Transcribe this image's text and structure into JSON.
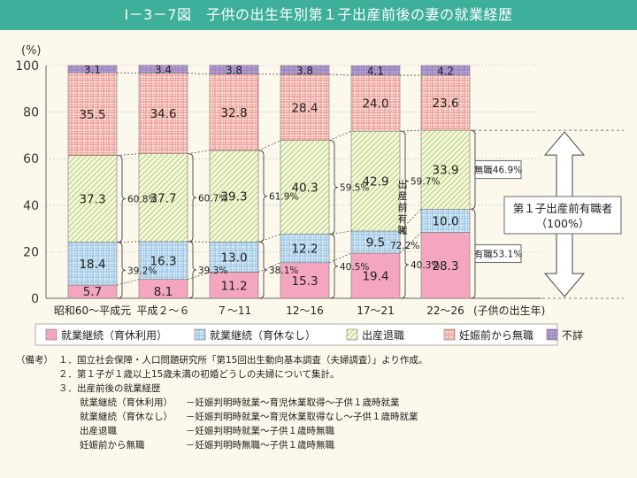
{
  "title": "I－3－7図　子供の出生年別第１子出産前後の妻の就業経歴",
  "chart_data": {
    "type": "bar",
    "stacked": true,
    "ylabel": "(%)",
    "ylim": [
      0,
      100
    ],
    "yticks": [
      0,
      20,
      40,
      60,
      80,
      100
    ],
    "categories": [
      "昭和60～平成元",
      "平成２～６",
      "７～11",
      "12～16",
      "17～21",
      "22～26"
    ],
    "xlabel": "(子供の出生年)",
    "series": [
      {
        "name": "就業継続（育休利用）",
        "color": "#f4a6be",
        "values": [
          5.7,
          8.1,
          11.2,
          15.3,
          19.4,
          28.3
        ]
      },
      {
        "name": "就業継続（育休なし）",
        "color": "#c5def0",
        "values": [
          18.4,
          16.3,
          13.0,
          12.2,
          9.5,
          10.0
        ]
      },
      {
        "name": "出産退職",
        "color": "#e6f0c3",
        "values": [
          37.3,
          37.7,
          39.3,
          40.3,
          42.9,
          33.9
        ]
      },
      {
        "name": "妊娠前から無職",
        "color": "#f5b7ae",
        "values": [
          35.5,
          34.6,
          32.8,
          28.4,
          24.0,
          23.6
        ]
      },
      {
        "name": "不詳",
        "color": "#c7b6dc",
        "values": [
          3.1,
          3.4,
          3.8,
          3.8,
          4.1,
          4.2
        ]
      }
    ],
    "employed_before_pct": [
      "39.2%",
      "39.3%",
      "38.1%",
      "40.5%",
      "40.3%"
    ],
    "quit_pct": [
      "60.8%",
      "60.7%",
      "61.9%",
      "59.5%",
      "59.7%"
    ],
    "employed_before_total_label": "72.2%",
    "employed_before_total_vertical": "出産前有職",
    "right_labels": {
      "unemployed": "無職46.9%",
      "employed": "有職53.1%"
    },
    "arrow_label_lines": [
      "第１子出産前有職者",
      "（100%）"
    ]
  },
  "notes": {
    "prefix": "（備考）",
    "items": [
      "１．国立社会保障・人口問題研究所「第15回出生動向基本調査（夫婦調査）」より作成。",
      "２．第１子が１歳以上15歳未満の初婚どうしの夫婦について集計。",
      "３．出産前後の就業経歴"
    ],
    "definitions": [
      {
        "term": "就業継続（育休利用）",
        "desc": "－妊娠判明時就業～育児休業取得～子供１歳時就業"
      },
      {
        "term": "就業継続（育休なし）",
        "desc": "－妊娠判明時就業～育児休業取得なし～子供１歳時就業"
      },
      {
        "term": "出産退職",
        "desc": "－妊娠判明時就業～子供１歳時無職"
      },
      {
        "term": "妊娠前から無職",
        "desc": "－妊娠判明時無職～子供１歳時無職"
      }
    ]
  }
}
